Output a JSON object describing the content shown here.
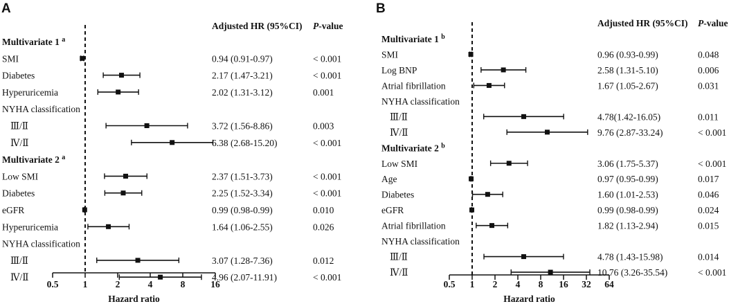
{
  "chart_data": [
    {
      "type": "forest",
      "panel": "A",
      "xlabel": "Hazard ratio",
      "xscale": "log2",
      "xlim": [
        0.5,
        16
      ],
      "xticks": [
        "0.5",
        "1",
        "2",
        "4",
        "8",
        "16"
      ],
      "reference_line": 1,
      "header_hr": "Adjusted HR (95%CI)",
      "header_p_italic": "P",
      "header_p_rest": "-value",
      "rows": [
        {
          "label": "Multivariate 1",
          "sup": "a",
          "header": true
        },
        {
          "label": "SMI",
          "hr": 0.94,
          "lo": 0.91,
          "hi": 0.97,
          "text": "0.94 (0.91-0.97)",
          "p": "< 0.001"
        },
        {
          "label": "Diabetes",
          "hr": 2.17,
          "lo": 1.47,
          "hi": 3.21,
          "text": "2.17 (1.47-3.21)",
          "p": "< 0.001"
        },
        {
          "label": "Hyperuricemia",
          "hr": 2.02,
          "lo": 1.31,
          "hi": 3.12,
          "text": "2.02 (1.31-3.12)",
          "p": "0.001"
        },
        {
          "label": "NYHA classification",
          "sub": true
        },
        {
          "label": "Ⅲ/Ⅱ",
          "indent": true,
          "hr": 3.72,
          "lo": 1.56,
          "hi": 8.86,
          "text": "3.72 (1.56-8.86)",
          "p": "0.003"
        },
        {
          "label": "Ⅳ/Ⅱ",
          "indent": true,
          "hr": 6.38,
          "lo": 2.68,
          "hi": 15.2,
          "text": "6.38 (2.68-15.20)",
          "p": "< 0.001"
        },
        {
          "label": "Multivariate 2",
          "sup": "a",
          "header": true
        },
        {
          "label": "Low SMI",
          "hr": 2.37,
          "lo": 1.51,
          "hi": 3.73,
          "text": "2.37 (1.51-3.73)",
          "p": "< 0.001"
        },
        {
          "label": "Diabetes",
          "hr": 2.25,
          "lo": 1.52,
          "hi": 3.34,
          "text": "2.25 (1.52-3.34)",
          "p": "< 0.001"
        },
        {
          "label": "eGFR",
          "hr": 0.99,
          "lo": 0.98,
          "hi": 0.99,
          "text": "0.99 (0.98-0.99)",
          "p": "0.010"
        },
        {
          "label": "Hyperuricemia",
          "hr": 1.64,
          "lo": 1.06,
          "hi": 2.55,
          "text": "1.64 (1.06-2.55)",
          "p": "0.026"
        },
        {
          "label": "NYHA classification",
          "sub": true
        },
        {
          "label": "Ⅲ/Ⅱ",
          "indent": true,
          "hr": 3.07,
          "lo": 1.28,
          "hi": 7.36,
          "text": "3.07 (1.28-7.36)",
          "p": "0.012"
        },
        {
          "label": "Ⅳ/Ⅱ",
          "indent": true,
          "hr": 4.96,
          "lo": 2.07,
          "hi": 11.91,
          "text": "4.96 (2.07-11.91)",
          "p": "< 0.001"
        }
      ]
    },
    {
      "type": "forest",
      "panel": "B",
      "xlabel": "Hazard ratio",
      "xscale": "log2",
      "xlim": [
        0.5,
        64
      ],
      "xticks": [
        "0.5",
        "1",
        "2",
        "4",
        "8",
        "16",
        "32",
        "64"
      ],
      "reference_line": 1,
      "header_hr": "Adjusted HR (95%CI)",
      "header_p_italic": "P",
      "header_p_rest": "-value",
      "rows": [
        {
          "label": "Multivariate 1",
          "sup": "b",
          "header": true
        },
        {
          "label": "SMI",
          "hr": 0.96,
          "lo": 0.93,
          "hi": 0.99,
          "text": "0.96 (0.93-0.99)",
          "p": "0.048"
        },
        {
          "label": "Log BNP",
          "hr": 2.58,
          "lo": 1.31,
          "hi": 5.1,
          "text": "2.58 (1.31-5.10)",
          "p": "0.006"
        },
        {
          "label": "Atrial fibrillation",
          "hr": 1.67,
          "lo": 1.05,
          "hi": 2.67,
          "text": "1.67 (1.05-2.67)",
          "p": "0.031"
        },
        {
          "label": "NYHA classification",
          "sub": true
        },
        {
          "label": "Ⅲ/Ⅱ",
          "indent": true,
          "hr": 4.78,
          "lo": 1.42,
          "hi": 16.05,
          "text": "4.78(1.42-16.05)",
          "p": "0.011"
        },
        {
          "label": "Ⅳ/Ⅱ",
          "indent": true,
          "hr": 9.76,
          "lo": 2.87,
          "hi": 33.24,
          "text": "9.76 (2.87-33.24)",
          "p": "< 0.001"
        },
        {
          "label": "Multivariate 2",
          "sup": "b",
          "header": true
        },
        {
          "label": "Low SMI",
          "hr": 3.06,
          "lo": 1.75,
          "hi": 5.37,
          "text": "3.06 (1.75-5.37)",
          "p": "< 0.001"
        },
        {
          "label": "Age",
          "hr": 0.97,
          "lo": 0.95,
          "hi": 0.99,
          "text": "0.97 (0.95-0.99)",
          "p": "0.017"
        },
        {
          "label": "Diabetes",
          "hr": 1.6,
          "lo": 1.01,
          "hi": 2.53,
          "text": "1.60 (1.01-2.53)",
          "p": "0.046"
        },
        {
          "label": "eGFR",
          "hr": 0.99,
          "lo": 0.98,
          "hi": 0.99,
          "text": "0.99 (0.98-0.99)",
          "p": "0.024"
        },
        {
          "label": "Atrial fibrillation",
          "hr": 1.82,
          "lo": 1.13,
          "hi": 2.94,
          "text": "1.82 (1.13-2.94)",
          "p": "0.015"
        },
        {
          "label": "NYHA classification",
          "sub": true
        },
        {
          "label": "Ⅲ/Ⅱ",
          "indent": true,
          "hr": 4.78,
          "lo": 1.43,
          "hi": 15.98,
          "text": "4.78 (1.43-15.98)",
          "p": "0.014"
        },
        {
          "label": "Ⅳ/Ⅱ",
          "indent": true,
          "hr": 10.76,
          "lo": 3.26,
          "hi": 35.54,
          "text": "10.76 (3.26-35.54)",
          "p": "< 0.001"
        }
      ]
    }
  ]
}
